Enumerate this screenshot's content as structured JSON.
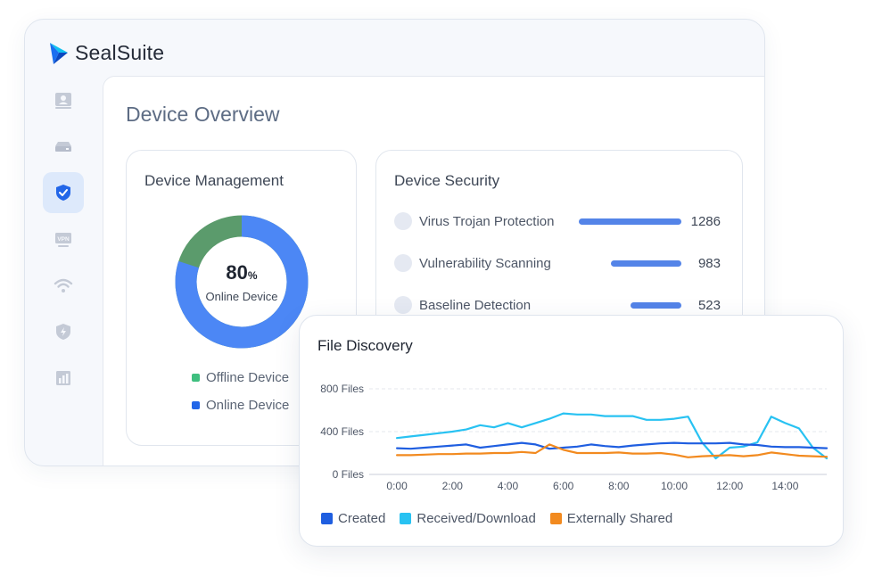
{
  "app": {
    "name": "SealSuite",
    "colors": {
      "accent": "#3a78f2",
      "brand": "#1a6ff0"
    }
  },
  "sidebar": {
    "items": [
      {
        "icon": "contact-card-icon",
        "active": false
      },
      {
        "icon": "device-drive-icon",
        "active": false
      },
      {
        "icon": "shield-check-icon",
        "active": true
      },
      {
        "icon": "vpn-icon",
        "active": false
      },
      {
        "icon": "wifi-icon",
        "active": false
      },
      {
        "icon": "shield-bolt-icon",
        "active": false
      },
      {
        "icon": "report-chart-icon",
        "active": false
      }
    ],
    "vpn_text": "VPN"
  },
  "main": {
    "title": "Device Overview"
  },
  "device_management": {
    "title": "Device Management",
    "percent": "80",
    "percent_unit": "%",
    "center_label": "Online Device",
    "online_fraction": 0.8,
    "colors": {
      "online": "#4c87f5",
      "offline": "#5b9b6c"
    },
    "legend": [
      {
        "label": "Offline Device",
        "color": "#3fbf7f"
      },
      {
        "label": "Online Device",
        "color": "#2266e8"
      }
    ]
  },
  "device_security": {
    "title": "Device Security",
    "items": [
      {
        "label": "Virus Trojan Protection",
        "value": "1286",
        "fraction": 1.0
      },
      {
        "label": "Vulnerability Scanning",
        "value": "983",
        "fraction": 0.69
      },
      {
        "label": "Baseline Detection",
        "value": "523",
        "fraction": 0.5
      }
    ]
  },
  "chart_data": {
    "type": "line",
    "title": "File Discovery",
    "x": [
      0,
      0.5,
      1,
      1.5,
      2,
      2.5,
      3,
      3.5,
      4,
      4.5,
      5,
      5.5,
      6,
      6.5,
      7,
      7.5,
      8,
      8.5,
      9,
      9.5,
      10,
      10.5,
      11,
      11.5,
      12,
      12.5,
      13,
      13.5,
      14,
      14.5,
      15,
      15.5
    ],
    "x_ticks": [
      "0:00",
      "2:00",
      "4:00",
      "6:00",
      "8:00",
      "10:00",
      "12:00",
      "14:00"
    ],
    "x_tick_values": [
      0,
      2,
      4,
      6,
      8,
      10,
      12,
      14
    ],
    "xlim": [
      -1,
      15.5
    ],
    "y_ticks": [
      "0 Files",
      "400 Files",
      "800 Files"
    ],
    "y_tick_values": [
      0,
      400,
      800
    ],
    "ylim": [
      0,
      800
    ],
    "series": [
      {
        "name": "Created",
        "color": "#1f5ee0",
        "values": [
          245,
          240,
          250,
          260,
          270,
          280,
          250,
          265,
          280,
          295,
          280,
          240,
          250,
          260,
          280,
          265,
          255,
          270,
          280,
          290,
          295,
          290,
          290,
          290,
          295,
          280,
          275,
          260,
          255,
          255,
          250,
          245
        ]
      },
      {
        "name": "Received/Download",
        "color": "#28c2f2",
        "values": [
          340,
          355,
          370,
          385,
          400,
          420,
          460,
          440,
          480,
          440,
          480,
          520,
          570,
          560,
          560,
          545,
          545,
          545,
          510,
          510,
          520,
          540,
          300,
          150,
          250,
          260,
          300,
          540,
          480,
          430,
          250,
          150
        ]
      },
      {
        "name": "Externally Shared",
        "color": "#f28a1f",
        "values": [
          180,
          180,
          185,
          190,
          190,
          195,
          195,
          200,
          200,
          210,
          200,
          280,
          230,
          200,
          200,
          200,
          205,
          195,
          195,
          200,
          185,
          160,
          170,
          175,
          180,
          170,
          180,
          205,
          190,
          175,
          170,
          165
        ]
      }
    ]
  }
}
